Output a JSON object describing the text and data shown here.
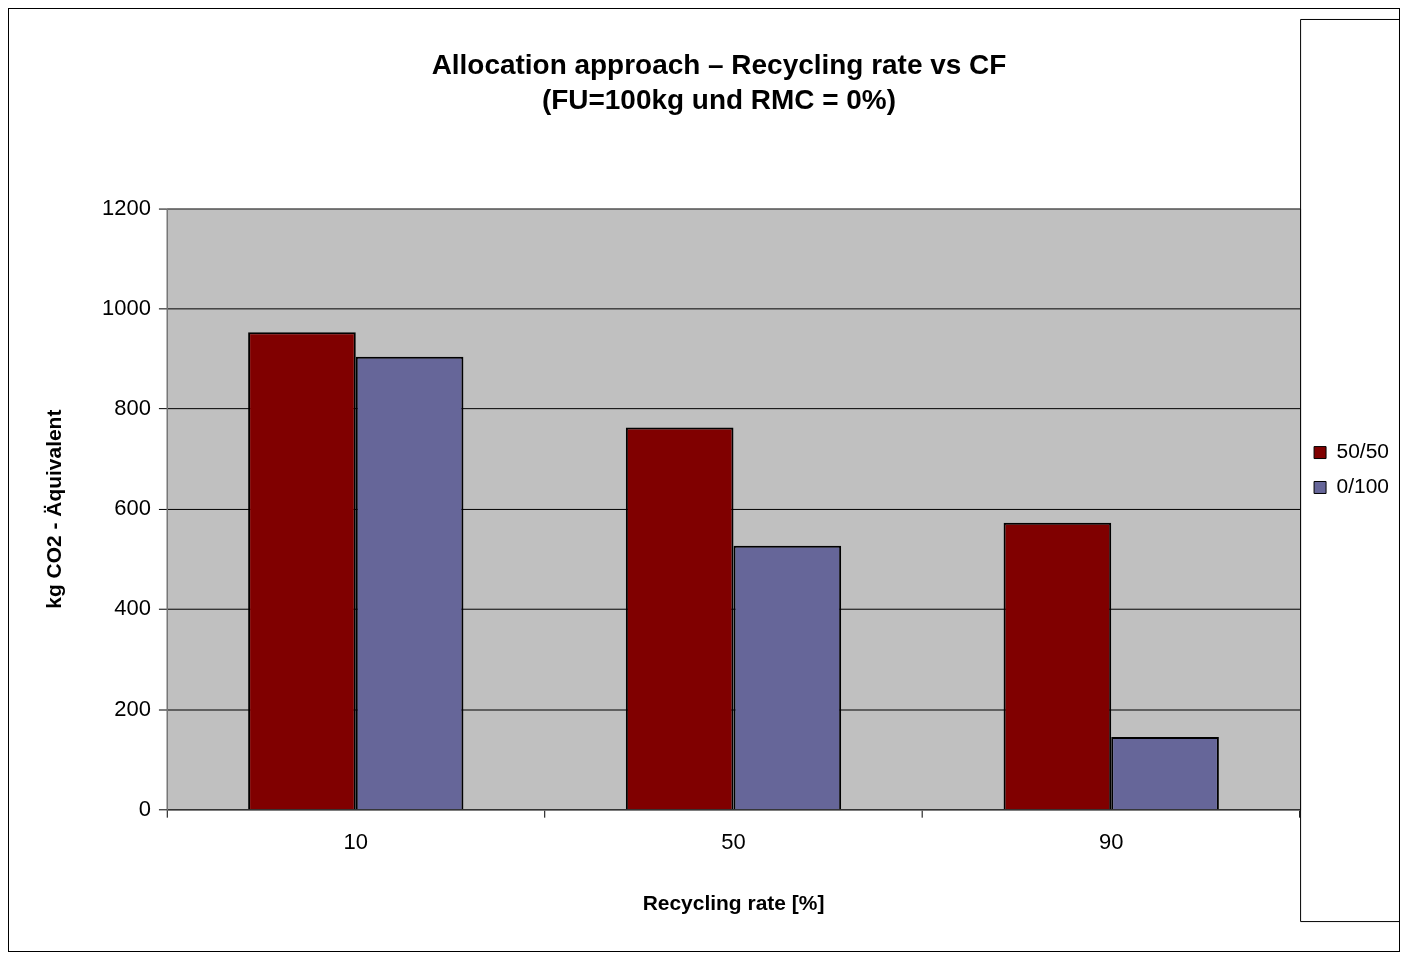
{
  "chart_data": {
    "type": "bar",
    "title": "Allocation approach – Recycling rate vs CF\n(FU=100kg und RMC = 0%)",
    "xlabel": "Recycling rate [%]",
    "ylabel": "kg CO2 - Äquivalent",
    "categories": [
      "10",
      "50",
      "90"
    ],
    "series": [
      {
        "name": "50/50",
        "color": "#800000",
        "values": [
          953,
          763,
          573
        ]
      },
      {
        "name": "0/100",
        "color": "#666699",
        "values": [
          904,
          527,
          145
        ]
      }
    ],
    "ylim": [
      0,
      1200
    ],
    "yticks": [
      0,
      200,
      400,
      600,
      800,
      1000,
      1200
    ],
    "grid": "y",
    "legend": "right"
  }
}
